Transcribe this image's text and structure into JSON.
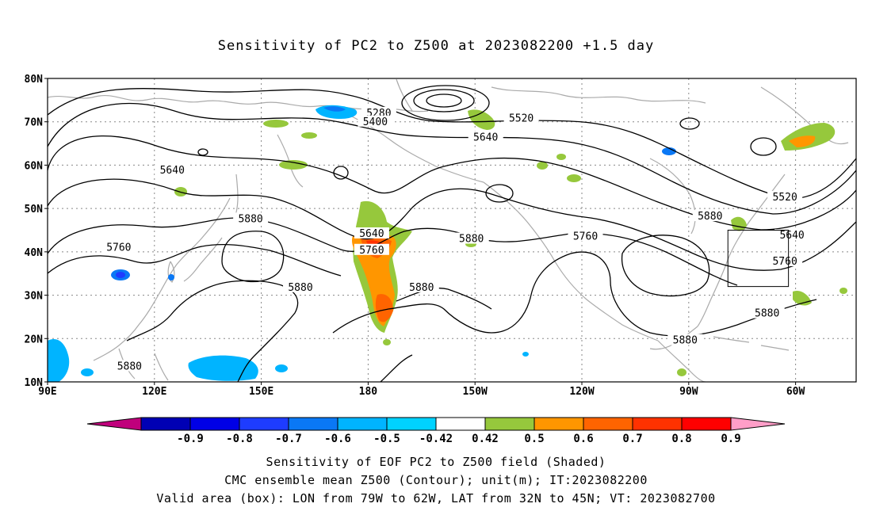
{
  "title": "Sensitivity of PC2 to Z500 at 2023082200 +1.5 day",
  "lat_labels": [
    "80N",
    "70N",
    "60N",
    "50N",
    "40N",
    "30N",
    "20N",
    "10N"
  ],
  "lon_labels": [
    "90E",
    "120E",
    "150E",
    "180",
    "150W",
    "120W",
    "90W",
    "60W"
  ],
  "contour_labels": [
    {
      "text": "5280",
      "lon": 183,
      "lat": 71.8
    },
    {
      "text": "5400",
      "lon": 182,
      "lat": 69.8
    },
    {
      "text": "5520",
      "lon": 223,
      "lat": 70.6
    },
    {
      "text": "5640",
      "lon": 213,
      "lat": 66.2
    },
    {
      "text": "5640",
      "lon": 125,
      "lat": 58.6
    },
    {
      "text": "5880",
      "lon": 147,
      "lat": 47.4
    },
    {
      "text": "5640",
      "lon": 181,
      "lat": 44.0
    },
    {
      "text": "5760",
      "lon": 181,
      "lat": 40.2
    },
    {
      "text": "5880",
      "lon": 209,
      "lat": 42.8
    },
    {
      "text": "5760",
      "lon": 110,
      "lat": 40.8
    },
    {
      "text": "5760",
      "lon": 241,
      "lat": 43.4
    },
    {
      "text": "5880",
      "lon": 276,
      "lat": 48.0
    },
    {
      "text": "5520",
      "lon": 297,
      "lat": 52.4
    },
    {
      "text": "5640",
      "lon": 299,
      "lat": 43.6
    },
    {
      "text": "5760",
      "lon": 297,
      "lat": 37.6
    },
    {
      "text": "5880",
      "lon": 161,
      "lat": 31.6
    },
    {
      "text": "5880",
      "lon": 195,
      "lat": 31.6
    },
    {
      "text": "5880",
      "lon": 292,
      "lat": 25.6
    },
    {
      "text": "5880",
      "lon": 269,
      "lat": 19.4
    },
    {
      "text": "5880",
      "lon": 113,
      "lat": 13.4
    }
  ],
  "valid_box": {
    "lon_min": 281,
    "lon_max": 298,
    "lat_min": 32,
    "lat_max": 45
  },
  "colorbar": {
    "labels": [
      "-0.9",
      "-0.8",
      "-0.7",
      "-0.6",
      "-0.5",
      "-0.42",
      "0.42",
      "0.5",
      "0.6",
      "0.7",
      "0.8",
      "0.9"
    ],
    "colors": [
      "#c0007c",
      "#0000b4",
      "#0000e6",
      "#1e3cff",
      "#0a78f5",
      "#00b4ff",
      "#00d2ff",
      "#ffffff",
      "#96c83c",
      "#ff9600",
      "#ff6400",
      "#ff3200",
      "#ff0000",
      "#ff9ec8"
    ]
  },
  "captions": [
    "Sensitivity of EOF PC2 to Z500 field (Shaded)",
    "CMC ensemble mean Z500 (Contour); unit(m); IT:2023082200",
    "Valid area (box): LON from 79W to 62W, LAT from 32N to 45N; VT: 2023082700"
  ]
}
